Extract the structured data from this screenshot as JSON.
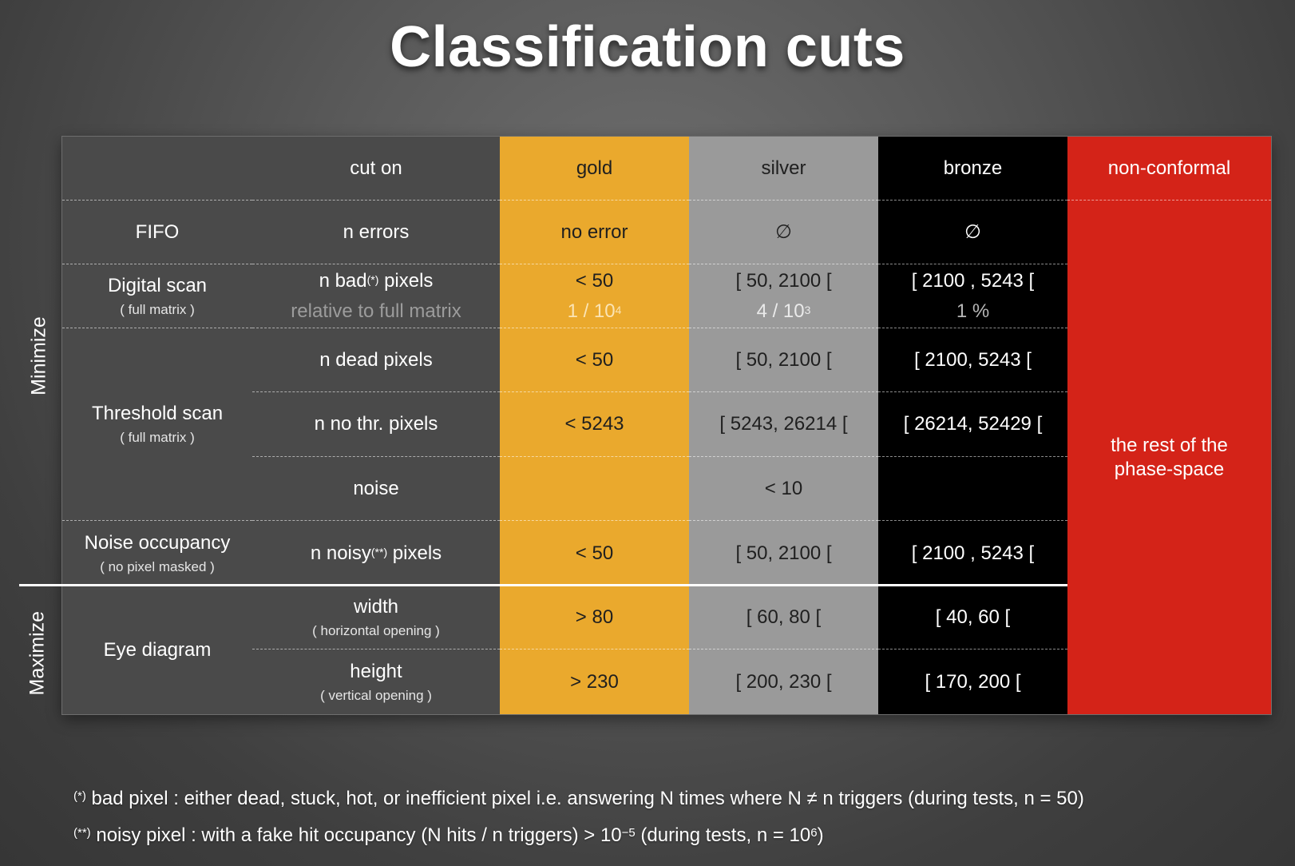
{
  "title": "Classification cuts",
  "side_labels": {
    "minimize": "Minimize",
    "maximize": "Maximize"
  },
  "header": {
    "cut_on": "cut on",
    "gold": "gold",
    "silver": "silver",
    "bronze": "bronze",
    "non_conformal": "non-conformal"
  },
  "rows": {
    "fifo": {
      "test": "FIFO",
      "cut": "n errors",
      "gold": "no error",
      "silver": "∅",
      "bronze": "∅"
    },
    "digital": {
      "test": "Digital scan",
      "test_sub": "( full matrix )",
      "cut_pre": "n bad",
      "cut_sup": "(*)",
      "cut_post": " pixels",
      "cut_rel": "relative to full matrix",
      "gold": "< 50",
      "gold_rel_pre": "1 / 10",
      "gold_rel_sup": "4",
      "silver": "[ 50, 2100 [",
      "silver_rel_pre": "4 / 10",
      "silver_rel_sup": "3",
      "bronze": "[ 2100 , 5243 [",
      "bronze_rel": "1 %"
    },
    "threshold": {
      "test": "Threshold scan",
      "test_sub": "( full matrix )",
      "dead": {
        "cut": "n dead pixels",
        "gold": "< 50",
        "silver": "[ 50, 2100 [",
        "bronze": "[ 2100, 5243 ["
      },
      "nothr": {
        "cut": "n no thr. pixels",
        "gold": "< 5243",
        "silver": "[ 5243, 26214 [",
        "bronze": "[ 26214, 52429 ["
      },
      "noise": {
        "cut": "noise",
        "silver": "< 10"
      }
    },
    "noise_occ": {
      "test": "Noise occupancy",
      "test_sub": "( no pixel masked )",
      "cut_pre": "n noisy",
      "cut_sup": "(**)",
      "cut_post": " pixels",
      "gold": "< 50",
      "silver": "[ 50, 2100 [",
      "bronze": "[ 2100 , 5243 ["
    },
    "eye": {
      "test": "Eye diagram",
      "width": {
        "cut": "width",
        "cut_sub": "( horizontal opening )",
        "gold": "> 80",
        "silver": "[ 60, 80 [",
        "bronze": "[ 40, 60 ["
      },
      "height": {
        "cut": "height",
        "cut_sub": "( vertical opening )",
        "gold": "> 230",
        "silver": "[ 200, 230 [",
        "bronze": "[ 170, 200 ["
      }
    }
  },
  "non_conformal_text": "the rest of the phase-space",
  "footnotes": {
    "f1_sup": "(*)",
    "f1_text": " bad pixel : either dead, stuck, hot, or inefficient pixel i.e. answering N times where N ≠ n triggers (during tests, n = 50)",
    "f2_sup": "(**)",
    "f2_pre": " noisy pixel : with a fake hit occupancy (N hits / n triggers) > 10",
    "f2_exp": "−5",
    "f2_mid": " (during tests, n = 10",
    "f2_exp2": "6",
    "f2_post": ")"
  }
}
